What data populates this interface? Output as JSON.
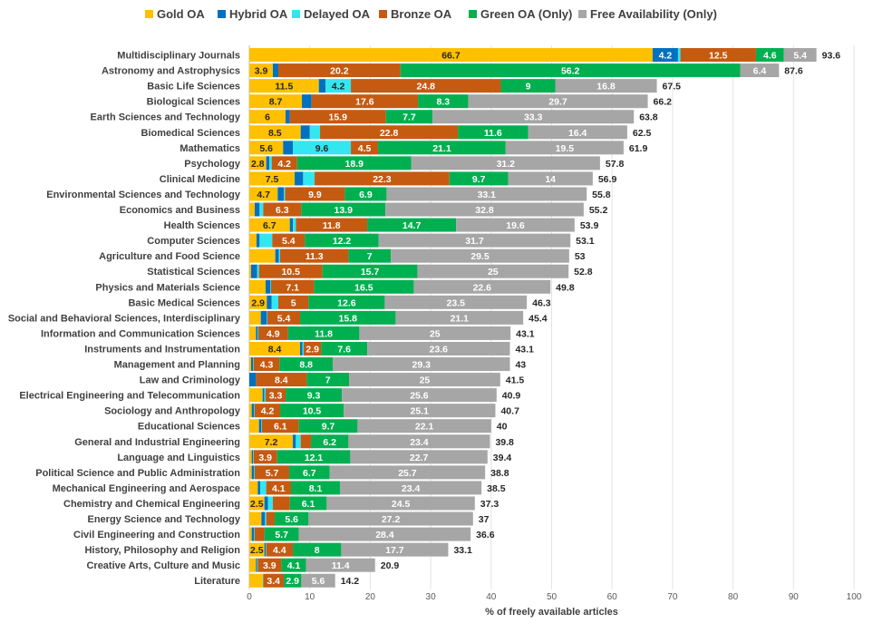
{
  "chart_data": {
    "type": "bar",
    "orientation": "horizontal",
    "stacked": true,
    "xlabel": "% of freely available articles",
    "xlim": [
      0,
      100
    ],
    "xticks": [
      0,
      10,
      20,
      30,
      40,
      50,
      60,
      70,
      80,
      90,
      100
    ],
    "grid": true,
    "legend_position": "top",
    "series": [
      {
        "name": "Gold OA",
        "color": "#FFC000"
      },
      {
        "name": "Hybrid OA",
        "color": "#0070C0"
      },
      {
        "name": "Delayed OA",
        "color": "#33E6F0"
      },
      {
        "name": "Bronze OA",
        "color": "#C55A11"
      },
      {
        "name": "Green OA (Only)",
        "color": "#00B050"
      },
      {
        "name": "Free Availability (Only)",
        "color": "#A6A6A6"
      }
    ],
    "categories": [
      {
        "name": "Multidisciplinary Journals",
        "values": [
          66.7,
          4.2,
          0.4,
          12.5,
          4.6,
          5.4
        ],
        "labels": [
          "66.7",
          "4.2",
          "",
          "12.5",
          "4.6",
          "5.4"
        ],
        "total": "93.6"
      },
      {
        "name": "Astronomy and Astrophysics",
        "values": [
          3.9,
          0.9,
          0.0,
          20.2,
          56.2,
          6.4
        ],
        "labels": [
          "3.9",
          "",
          "",
          "20.2",
          "56.2",
          "6.4"
        ],
        "total": "87.6"
      },
      {
        "name": "Basic Life Sciences",
        "values": [
          11.5,
          1.1,
          4.2,
          24.8,
          9.0,
          16.8
        ],
        "labels": [
          "11.5",
          "",
          "4.2",
          "24.8",
          "9",
          "16.8"
        ],
        "total": "67.5"
      },
      {
        "name": "Biological Sciences",
        "values": [
          8.7,
          1.6,
          0.0,
          17.6,
          8.3,
          29.7
        ],
        "labels": [
          "8.7",
          "",
          "",
          "17.6",
          "8.3",
          "29.7"
        ],
        "total": "66.2"
      },
      {
        "name": "Earth Sciences and Technology",
        "values": [
          6.0,
          0.7,
          0.0,
          15.9,
          7.7,
          33.3
        ],
        "labels": [
          "6",
          "",
          "",
          "15.9",
          "7.7",
          "33.3"
        ],
        "total": "63.8"
      },
      {
        "name": "Biomedical Sciences",
        "values": [
          8.5,
          1.5,
          1.7,
          22.8,
          11.6,
          16.4
        ],
        "labels": [
          "8.5",
          "",
          "",
          "22.8",
          "11.6",
          "16.4"
        ],
        "total": "62.5"
      },
      {
        "name": "Mathematics",
        "values": [
          5.6,
          1.6,
          9.6,
          4.5,
          21.1,
          19.5
        ],
        "labels": [
          "5.6",
          "",
          "9.6",
          "4.5",
          "21.1",
          "19.5"
        ],
        "total": "61.9"
      },
      {
        "name": "Psychology",
        "values": [
          2.8,
          0.5,
          0.4,
          4.2,
          18.9,
          31.2
        ],
        "labels": [
          "2.8",
          "",
          "",
          "4.2",
          "18.9",
          "31.2"
        ],
        "total": "57.8"
      },
      {
        "name": "Clinical Medicine",
        "values": [
          7.5,
          1.4,
          1.9,
          22.3,
          9.7,
          14.0
        ],
        "labels": [
          "7.5",
          "",
          "",
          "22.3",
          "9.7",
          "14"
        ],
        "total": "56.9"
      },
      {
        "name": "Environmental Sciences and Technology",
        "values": [
          4.7,
          1.0,
          0.2,
          9.9,
          6.9,
          33.1
        ],
        "labels": [
          "4.7",
          "",
          "",
          "9.9",
          "6.9",
          "33.1"
        ],
        "total": "55.8"
      },
      {
        "name": "Economics and Business",
        "values": [
          0.9,
          0.8,
          0.6,
          6.3,
          13.9,
          32.8
        ],
        "labels": [
          "",
          "",
          "",
          "6.3",
          "13.9",
          "32.8"
        ],
        "total": "55.2"
      },
      {
        "name": "Health Sciences",
        "values": [
          6.7,
          0.5,
          0.5,
          11.8,
          14.7,
          19.6
        ],
        "labels": [
          "6.7",
          "",
          "",
          "11.8",
          "14.7",
          "19.6"
        ],
        "total": "53.9"
      },
      {
        "name": "Computer Sciences",
        "values": [
          1.2,
          0.5,
          2.1,
          5.4,
          12.2,
          31.7
        ],
        "labels": [
          "",
          "",
          "",
          "5.4",
          "12.2",
          "31.7"
        ],
        "total": "53.1"
      },
      {
        "name": "Agriculture and Food Science",
        "values": [
          4.3,
          0.6,
          0.2,
          11.3,
          7.0,
          29.5
        ],
        "labels": [
          "",
          "",
          "",
          "11.3",
          "7",
          "29.5"
        ],
        "total": "53"
      },
      {
        "name": "Statistical Sciences",
        "values": [
          0.3,
          1.0,
          0.3,
          10.5,
          15.7,
          25.0
        ],
        "labels": [
          "",
          "",
          "",
          "10.5",
          "15.7",
          "25"
        ],
        "total": "52.8"
      },
      {
        "name": "Physics and Materials Science",
        "values": [
          2.7,
          0.8,
          0.1,
          7.1,
          16.5,
          22.6
        ],
        "labels": [
          "",
          "",
          "",
          "7.1",
          "16.5",
          "22.6"
        ],
        "total": "49.8"
      },
      {
        "name": "Basic Medical Sciences",
        "values": [
          2.9,
          0.8,
          1.1,
          5.0,
          12.6,
          23.5
        ],
        "labels": [
          "2.9",
          "",
          "",
          "5",
          "12.6",
          "23.5"
        ],
        "total": "46.3"
      },
      {
        "name": "Social and Behavioral Sciences, Interdisciplinary",
        "values": [
          1.9,
          1.0,
          0.1,
          5.4,
          15.8,
          21.1
        ],
        "labels": [
          "",
          "",
          "",
          "5.4",
          "15.8",
          "21.1"
        ],
        "total": "45.4"
      },
      {
        "name": "Information and Communication Sciences",
        "values": [
          1.1,
          0.3,
          0.1,
          4.9,
          11.8,
          25.0
        ],
        "labels": [
          "",
          "",
          "",
          "4.9",
          "11.8",
          "25"
        ],
        "total": "43.1"
      },
      {
        "name": "Instruments and Instrumentation",
        "values": [
          8.4,
          0.4,
          0.2,
          2.9,
          7.6,
          23.6
        ],
        "labels": [
          "8.4",
          "",
          "",
          "2.9",
          "7.6",
          "23.6"
        ],
        "total": "43.1"
      },
      {
        "name": "Management and Planning",
        "values": [
          0.3,
          0.3,
          0.1,
          4.3,
          8.8,
          29.3
        ],
        "labels": [
          "",
          "",
          "",
          "4.3",
          "8.8",
          "29.3"
        ],
        "total": "43"
      },
      {
        "name": "Law and Criminology",
        "values": [
          0.0,
          1.1,
          0.0,
          8.4,
          7.0,
          25.0
        ],
        "labels": [
          "",
          "",
          "",
          "8.4",
          "7",
          "25"
        ],
        "total": "41.5"
      },
      {
        "name": "Electrical Engineering and Telecommunication",
        "values": [
          2.2,
          0.3,
          0.2,
          3.3,
          9.3,
          25.6
        ],
        "labels": [
          "",
          "",
          "",
          "3.3",
          "9.3",
          "25.6"
        ],
        "total": "40.9"
      },
      {
        "name": "Sociology and Anthropology",
        "values": [
          0.4,
          0.4,
          0.1,
          4.2,
          10.5,
          25.1
        ],
        "labels": [
          "",
          "",
          "",
          "4.2",
          "10.5",
          "25.1"
        ],
        "total": "40.7"
      },
      {
        "name": "Educational Sciences",
        "values": [
          1.6,
          0.4,
          0.1,
          6.1,
          9.7,
          22.1
        ],
        "labels": [
          "",
          "",
          "",
          "6.1",
          "9.7",
          "22.1"
        ],
        "total": "40"
      },
      {
        "name": "General and Industrial Engineering",
        "values": [
          7.2,
          0.5,
          0.8,
          1.7,
          6.2,
          23.4
        ],
        "labels": [
          "7.2",
          "",
          "",
          "",
          "6.2",
          "23.4"
        ],
        "total": "39.8"
      },
      {
        "name": "Language and Linguistics",
        "values": [
          0.4,
          0.2,
          0.1,
          3.9,
          12.1,
          22.7
        ],
        "labels": [
          "",
          "",
          "",
          "3.9",
          "12.1",
          "22.7"
        ],
        "total": "39.4"
      },
      {
        "name": "Political Science and Public Administration",
        "values": [
          0.4,
          0.4,
          0.1,
          5.7,
          6.7,
          25.7
        ],
        "labels": [
          "",
          "",
          "",
          "5.7",
          "6.7",
          "25.7"
        ],
        "total": "38.8"
      },
      {
        "name": "Mechanical Engineering and Aerospace",
        "values": [
          1.4,
          0.4,
          1.0,
          4.1,
          8.1,
          23.4
        ],
        "labels": [
          "",
          "",
          "",
          "4.1",
          "8.1",
          "23.4"
        ],
        "total": "38.5"
      },
      {
        "name": "Chemistry and Chemical Engineering",
        "values": [
          2.5,
          0.6,
          0.8,
          2.8,
          6.1,
          24.5
        ],
        "labels": [
          "2.5",
          "",
          "",
          "",
          "6.1",
          "24.5"
        ],
        "total": "37.3"
      },
      {
        "name": "Energy Science and Technology",
        "values": [
          2.0,
          0.6,
          0.2,
          1.4,
          5.6,
          27.2
        ],
        "labels": [
          "",
          "",
          "",
          "",
          "5.6",
          "27.2"
        ],
        "total": "37"
      },
      {
        "name": "Civil Engineering and Construction",
        "values": [
          0.4,
          0.4,
          0.1,
          1.6,
          5.7,
          28.4
        ],
        "labels": [
          "",
          "",
          "",
          "",
          "5.7",
          "28.4"
        ],
        "total": "36.6"
      },
      {
        "name": "History, Philosophy and Religion",
        "values": [
          2.5,
          0.2,
          0.1,
          4.4,
          8.0,
          17.7
        ],
        "labels": [
          "2.5",
          "",
          "",
          "4.4",
          "8",
          "17.7"
        ],
        "total": "33.1"
      },
      {
        "name": "Creative Arts, Culture and Music",
        "values": [
          1.1,
          0.2,
          0.1,
          3.9,
          4.1,
          11.4
        ],
        "labels": [
          "",
          "",
          "",
          "3.9",
          "4.1",
          "11.4"
        ],
        "total": "20.9"
      },
      {
        "name": "Literature",
        "values": [
          2.2,
          0.0,
          0.1,
          3.4,
          2.9,
          5.6
        ],
        "labels": [
          "",
          "",
          "",
          "3.4",
          "2.9",
          "5.6"
        ],
        "total": "14.2"
      }
    ]
  }
}
